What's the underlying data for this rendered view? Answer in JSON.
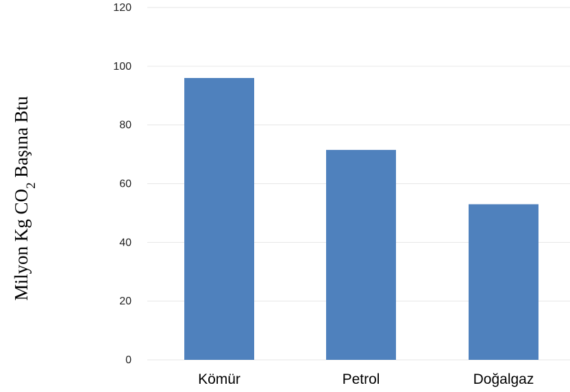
{
  "chart_data": {
    "type": "bar",
    "categories": [
      "Kömür",
      "Petrol",
      "Doğalgaz"
    ],
    "values": [
      96,
      71.5,
      53
    ],
    "title": "",
    "xlabel": "",
    "ylabel": "Milyon Kg CO₂ Başına Btu",
    "ylabel_parts": {
      "before": "Milyon Kg CO",
      "subscript": "2",
      "after": " Başına Btu"
    },
    "ylim": [
      0,
      120
    ],
    "yticks": [
      "0",
      "20",
      "40",
      "60",
      "80",
      "100",
      "120"
    ],
    "grid": true,
    "legend": "none",
    "bar_color": "#4F81BD",
    "grid_color": "#E6E6E6"
  }
}
